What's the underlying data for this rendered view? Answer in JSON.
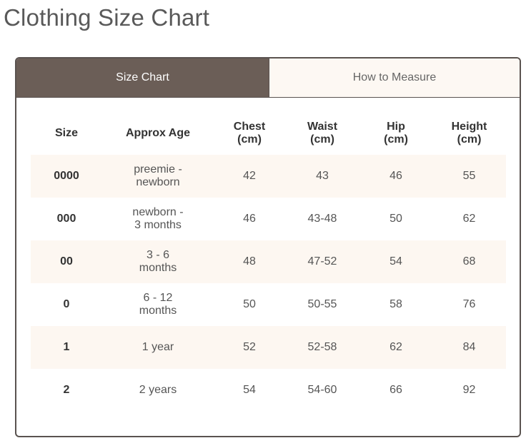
{
  "header": {
    "title": "Clothing Size Chart"
  },
  "tabs": [
    "Size Chart",
    "How to Measure"
  ],
  "table": {
    "columns": [
      "Size",
      "Approx Age",
      "Chest\n(cm)",
      "Waist\n(cm)",
      "Hip\n(cm)",
      "Height\n(cm)"
    ],
    "rows": [
      [
        "0000",
        "preemie -\nnewborn",
        "42",
        "43",
        "46",
        "55"
      ],
      [
        "000",
        "newborn -\n3 months",
        "46",
        "43-48",
        "50",
        "62"
      ],
      [
        "00",
        "3 - 6\nmonths",
        "48",
        "47-52",
        "54",
        "68"
      ],
      [
        "0",
        "6 - 12\nmonths",
        "50",
        "50-55",
        "58",
        "76"
      ],
      [
        "1",
        "1 year",
        "52",
        "52-58",
        "62",
        "84"
      ],
      [
        "2",
        "2 years",
        "54",
        "54-60",
        "66",
        "92"
      ]
    ]
  }
}
